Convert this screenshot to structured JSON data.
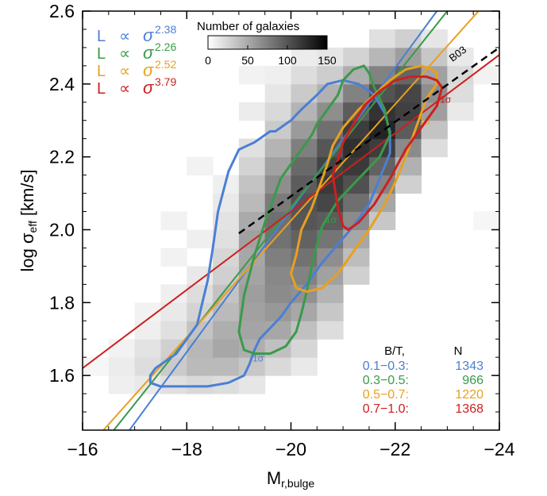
{
  "chart_data": {
    "type": "scatter",
    "xlabel": "M",
    "xlabel_sub": "r,bulge",
    "ylabel": "log σ",
    "ylabel_sub": "eff",
    "ylabel_unit": "[km/s]",
    "xlim": [
      -16,
      -24
    ],
    "ylim": [
      1.45,
      2.6
    ],
    "x_ticks": [
      -16,
      -18,
      -20,
      -22,
      -24
    ],
    "x_tick_labels": [
      "−16",
      "−18",
      "−20",
      "−22",
      "−24"
    ],
    "y_ticks": [
      1.6,
      1.8,
      2.0,
      2.2,
      2.4,
      2.6
    ],
    "y_tick_labels": [
      "1.6",
      "1.8",
      "2.0",
      "2.2",
      "2.4",
      "2.6"
    ],
    "colorbar": {
      "title": "Number of galaxies",
      "range": [
        0,
        150
      ],
      "ticks": [
        0,
        50,
        100,
        150
      ],
      "tick_labels": [
        "0",
        "50",
        "100",
        "150"
      ]
    },
    "density_grid": {
      "x0": -16.0,
      "dx": 0.5,
      "y0": 1.45,
      "dy": 0.05,
      "note_cells": "counts per cell, rows from low y to high y",
      "cells": [
        [
          -16.0,
          1.6,
          6
        ],
        [
          -16.5,
          1.55,
          10
        ],
        [
          -16.5,
          1.6,
          12
        ],
        [
          -16.5,
          1.65,
          8
        ],
        [
          -17.0,
          1.55,
          14
        ],
        [
          -17.0,
          1.6,
          22
        ],
        [
          -17.0,
          1.65,
          18
        ],
        [
          -17.0,
          1.7,
          10
        ],
        [
          -17.0,
          1.75,
          8
        ],
        [
          -17.5,
          1.55,
          20
        ],
        [
          -17.5,
          1.6,
          34
        ],
        [
          -17.5,
          1.65,
          30
        ],
        [
          -17.5,
          1.7,
          20
        ],
        [
          -17.5,
          1.75,
          14
        ],
        [
          -17.5,
          1.8,
          10
        ],
        [
          -17.5,
          1.9,
          8
        ],
        [
          -17.5,
          2.0,
          8
        ],
        [
          -18.0,
          1.55,
          24
        ],
        [
          -18.0,
          1.6,
          44
        ],
        [
          -18.0,
          1.65,
          46
        ],
        [
          -18.0,
          1.7,
          38
        ],
        [
          -18.0,
          1.75,
          28
        ],
        [
          -18.0,
          1.8,
          22
        ],
        [
          -18.0,
          1.85,
          14
        ],
        [
          -18.0,
          1.95,
          10
        ],
        [
          -18.0,
          2.15,
          8
        ],
        [
          -18.5,
          1.55,
          22
        ],
        [
          -18.5,
          1.6,
          44
        ],
        [
          -18.5,
          1.65,
          56
        ],
        [
          -18.5,
          1.7,
          52
        ],
        [
          -18.5,
          1.75,
          44
        ],
        [
          -18.5,
          1.8,
          38
        ],
        [
          -18.5,
          1.85,
          30
        ],
        [
          -18.5,
          1.9,
          26
        ],
        [
          -18.5,
          1.95,
          20
        ],
        [
          -18.5,
          2.0,
          18
        ],
        [
          -18.5,
          2.05,
          14
        ],
        [
          -18.5,
          2.1,
          10
        ],
        [
          -19.0,
          1.55,
          16
        ],
        [
          -19.0,
          1.6,
          36
        ],
        [
          -19.0,
          1.65,
          52
        ],
        [
          -19.0,
          1.7,
          58
        ],
        [
          -19.0,
          1.75,
          60
        ],
        [
          -19.0,
          1.8,
          62
        ],
        [
          -19.0,
          1.85,
          58
        ],
        [
          -19.0,
          1.9,
          56
        ],
        [
          -19.0,
          1.95,
          60
        ],
        [
          -19.0,
          2.0,
          54
        ],
        [
          -19.0,
          2.05,
          44
        ],
        [
          -19.0,
          2.1,
          38
        ],
        [
          -19.0,
          2.15,
          28
        ],
        [
          -19.0,
          2.2,
          20
        ],
        [
          -19.0,
          2.3,
          12
        ],
        [
          -19.0,
          2.4,
          8
        ],
        [
          -19.5,
          1.6,
          24
        ],
        [
          -19.5,
          1.65,
          40
        ],
        [
          -19.5,
          1.7,
          56
        ],
        [
          -19.5,
          1.75,
          66
        ],
        [
          -19.5,
          1.8,
          74
        ],
        [
          -19.5,
          1.85,
          76
        ],
        [
          -19.5,
          1.9,
          82
        ],
        [
          -19.5,
          1.95,
          90
        ],
        [
          -19.5,
          2.0,
          92
        ],
        [
          -19.5,
          2.05,
          84
        ],
        [
          -19.5,
          2.1,
          72
        ],
        [
          -19.5,
          2.15,
          60
        ],
        [
          -19.5,
          2.2,
          48
        ],
        [
          -19.5,
          2.25,
          34
        ],
        [
          -19.5,
          2.3,
          24
        ],
        [
          -19.5,
          2.35,
          16
        ],
        [
          -19.5,
          2.4,
          10
        ],
        [
          -20.0,
          1.6,
          14
        ],
        [
          -20.0,
          1.65,
          26
        ],
        [
          -20.0,
          1.7,
          40
        ],
        [
          -20.0,
          1.75,
          56
        ],
        [
          -20.0,
          1.8,
          70
        ],
        [
          -20.0,
          1.85,
          80
        ],
        [
          -20.0,
          1.9,
          90
        ],
        [
          -20.0,
          1.95,
          100
        ],
        [
          -20.0,
          2.0,
          108
        ],
        [
          -20.0,
          2.05,
          110
        ],
        [
          -20.0,
          2.1,
          104
        ],
        [
          -20.0,
          2.15,
          96
        ],
        [
          -20.0,
          2.2,
          82
        ],
        [
          -20.0,
          2.25,
          64
        ],
        [
          -20.0,
          2.3,
          48
        ],
        [
          -20.0,
          2.35,
          34
        ],
        [
          -20.0,
          2.4,
          22
        ],
        [
          -20.0,
          2.45,
          12
        ],
        [
          -20.5,
          1.7,
          22
        ],
        [
          -20.5,
          1.75,
          36
        ],
        [
          -20.5,
          1.8,
          48
        ],
        [
          -20.5,
          1.85,
          60
        ],
        [
          -20.5,
          1.9,
          72
        ],
        [
          -20.5,
          1.95,
          88
        ],
        [
          -20.5,
          2.0,
          104
        ],
        [
          -20.5,
          2.05,
          118
        ],
        [
          -20.5,
          2.1,
          126
        ],
        [
          -20.5,
          2.15,
          120
        ],
        [
          -20.5,
          2.2,
          108
        ],
        [
          -20.5,
          2.25,
          92
        ],
        [
          -20.5,
          2.3,
          72
        ],
        [
          -20.5,
          2.35,
          50
        ],
        [
          -20.5,
          2.4,
          32
        ],
        [
          -20.5,
          2.45,
          16
        ],
        [
          -21.0,
          1.85,
          30
        ],
        [
          -21.0,
          1.9,
          42
        ],
        [
          -21.0,
          1.95,
          56
        ],
        [
          -21.0,
          2.0,
          74
        ],
        [
          -21.0,
          2.05,
          92
        ],
        [
          -21.0,
          2.1,
          112
        ],
        [
          -21.0,
          2.15,
          126
        ],
        [
          -21.0,
          2.2,
          132
        ],
        [
          -21.0,
          2.25,
          124
        ],
        [
          -21.0,
          2.3,
          104
        ],
        [
          -21.0,
          2.35,
          80
        ],
        [
          -21.0,
          2.4,
          52
        ],
        [
          -21.0,
          2.45,
          28
        ],
        [
          -21.5,
          2.0,
          36
        ],
        [
          -21.5,
          2.05,
          56
        ],
        [
          -21.5,
          2.1,
          78
        ],
        [
          -21.5,
          2.15,
          100
        ],
        [
          -21.5,
          2.2,
          124
        ],
        [
          -21.5,
          2.25,
          140
        ],
        [
          -21.5,
          2.3,
          130
        ],
        [
          -21.5,
          2.35,
          110
        ],
        [
          -21.5,
          2.4,
          80
        ],
        [
          -21.5,
          2.45,
          46
        ],
        [
          -21.5,
          2.5,
          20
        ],
        [
          -22.0,
          2.1,
          30
        ],
        [
          -22.0,
          2.15,
          50
        ],
        [
          -22.0,
          2.2,
          74
        ],
        [
          -22.0,
          2.25,
          104
        ],
        [
          -22.0,
          2.3,
          122
        ],
        [
          -22.0,
          2.35,
          118
        ],
        [
          -22.0,
          2.4,
          98
        ],
        [
          -22.0,
          2.45,
          62
        ],
        [
          -22.0,
          2.5,
          30
        ],
        [
          -22.5,
          2.2,
          22
        ],
        [
          -22.5,
          2.25,
          38
        ],
        [
          -22.5,
          2.3,
          62
        ],
        [
          -22.5,
          2.35,
          72
        ],
        [
          -22.5,
          2.4,
          60
        ],
        [
          -22.5,
          2.45,
          36
        ],
        [
          -22.5,
          2.5,
          16
        ],
        [
          -23.0,
          2.3,
          14
        ],
        [
          -23.0,
          2.35,
          22
        ],
        [
          -23.0,
          2.4,
          24
        ],
        [
          -23.0,
          2.45,
          14
        ],
        [
          -23.5,
          2.4,
          8
        ],
        [
          -23.5,
          2.0,
          6
        ]
      ]
    },
    "fit_lines": [
      {
        "name": "L ∝ σ",
        "exponent": "2.38",
        "color": "#4a7fd4",
        "x": [
          -16.9,
          -22.8
        ],
        "y": [
          1.45,
          2.6
        ]
      },
      {
        "name": "L ∝ σ",
        "exponent": "2.26",
        "color": "#3a9a4a",
        "x": [
          -16.6,
          -23.0
        ],
        "y": [
          1.45,
          2.6
        ]
      },
      {
        "name": "L ∝ σ",
        "exponent": "2.52",
        "color": "#e8a020",
        "x": [
          -16.4,
          -23.6
        ],
        "y": [
          1.45,
          2.6
        ]
      },
      {
        "name": "L ∝ σ",
        "exponent": "3.79",
        "color": "#cc2020",
        "x": [
          -16.0,
          -24.0
        ],
        "y": [
          1.62,
          2.48
        ]
      }
    ],
    "reference_line": {
      "label": "B03",
      "color": "#000000",
      "x": [
        -19.0,
        -24.0
      ],
      "y": [
        1.99,
        2.5
      ]
    },
    "contours": [
      {
        "color": "#4a7fd4",
        "label": "1σ",
        "x": [
          -19.6,
          -19.3,
          -19.0,
          -18.8,
          -18.6,
          -18.5,
          -18.4,
          -18.3,
          -18.2,
          -18.0,
          -17.8,
          -17.6,
          -17.4,
          -17.3,
          -17.3,
          -17.5,
          -17.9,
          -18.4,
          -18.8,
          -19.1,
          -19.2,
          -19.3,
          -19.4,
          -19.6,
          -19.8,
          -20.0,
          -20.3,
          -20.6,
          -20.9,
          -21.2,
          -21.5,
          -21.7,
          -21.9,
          -21.9,
          -21.8,
          -21.6,
          -21.3,
          -21.0,
          -20.7,
          -20.5,
          -20.2,
          -20.0,
          -19.8,
          -19.7,
          -19.6
        ],
        "y": [
          2.27,
          2.24,
          2.22,
          2.16,
          2.05,
          1.95,
          1.86,
          1.8,
          1.74,
          1.7,
          1.66,
          1.64,
          1.62,
          1.6,
          1.58,
          1.57,
          1.57,
          1.57,
          1.58,
          1.6,
          1.63,
          1.67,
          1.7,
          1.73,
          1.76,
          1.8,
          1.85,
          1.91,
          1.96,
          2.01,
          2.07,
          2.14,
          2.21,
          2.27,
          2.32,
          2.37,
          2.4,
          2.41,
          2.4,
          2.37,
          2.33,
          2.3,
          2.28,
          2.27,
          2.27
        ]
      },
      {
        "color": "#3a9a4a",
        "label": "1σ",
        "x": [
          -19.7,
          -19.5,
          -19.3,
          -19.1,
          -19.0,
          -19.1,
          -19.3,
          -19.6,
          -19.9,
          -20.1,
          -20.2,
          -20.3,
          -20.4,
          -20.5,
          -20.6,
          -20.9,
          -21.3,
          -21.7,
          -21.9,
          -21.8,
          -21.6,
          -21.5,
          -21.4,
          -21.2,
          -21.0,
          -20.9,
          -20.7,
          -20.5,
          -20.4,
          -20.2,
          -20.0,
          -19.8,
          -19.7
        ],
        "y": [
          2.1,
          2.02,
          1.93,
          1.82,
          1.72,
          1.67,
          1.66,
          1.66,
          1.68,
          1.72,
          1.77,
          1.83,
          1.9,
          1.96,
          2.01,
          2.08,
          2.14,
          2.2,
          2.26,
          2.33,
          2.39,
          2.43,
          2.45,
          2.44,
          2.41,
          2.37,
          2.33,
          2.29,
          2.26,
          2.22,
          2.18,
          2.14,
          2.1
        ]
      },
      {
        "color": "#e8a020",
        "label": "1σ",
        "x": [
          -20.4,
          -20.2,
          -20.1,
          -20.0,
          -20.1,
          -20.3,
          -20.6,
          -20.9,
          -21.2,
          -21.5,
          -21.8,
          -22.0,
          -22.2,
          -22.4,
          -22.6,
          -22.8,
          -22.8,
          -22.7,
          -22.5,
          -22.2,
          -21.9,
          -21.6,
          -21.3,
          -21.0,
          -20.8,
          -20.7,
          -20.6,
          -20.5,
          -20.4
        ],
        "y": [
          2.06,
          2.0,
          1.93,
          1.88,
          1.84,
          1.83,
          1.84,
          1.88,
          1.94,
          2.0,
          2.07,
          2.13,
          2.2,
          2.28,
          2.36,
          2.4,
          2.43,
          2.44,
          2.45,
          2.44,
          2.41,
          2.37,
          2.33,
          2.28,
          2.23,
          2.18,
          2.14,
          2.1,
          2.06
        ]
      },
      {
        "color": "#cc2020",
        "label": "1σ",
        "x": [
          -20.8,
          -20.9,
          -21.0,
          -21.1,
          -21.3,
          -21.6,
          -21.9,
          -22.2,
          -22.5,
          -22.8,
          -22.9,
          -22.8,
          -22.6,
          -22.3,
          -22.0,
          -21.7,
          -21.4,
          -21.2,
          -21.0,
          -20.9,
          -20.8
        ],
        "y": [
          2.15,
          2.06,
          2.01,
          2.0,
          2.02,
          2.07,
          2.14,
          2.22,
          2.28,
          2.34,
          2.39,
          2.41,
          2.42,
          2.42,
          2.41,
          2.38,
          2.34,
          2.29,
          2.24,
          2.19,
          2.15
        ]
      }
    ],
    "legend_fits": [
      {
        "prefix": "L",
        "symbol": "∝",
        "base": "σ",
        "exponent": "2.38",
        "color": "#4a7fd4"
      },
      {
        "prefix": "L",
        "symbol": "∝",
        "base": "σ",
        "exponent": "2.26",
        "color": "#3a9a4a"
      },
      {
        "prefix": "L",
        "symbol": "∝",
        "base": "σ",
        "exponent": "2.52",
        "color": "#e8a020"
      },
      {
        "prefix": "L",
        "symbol": "∝",
        "base": "σ",
        "exponent": "3.79",
        "color": "#cc2020"
      }
    ],
    "legend_table": {
      "header_bt": "B/T,",
      "header_n": "N",
      "rows": [
        {
          "range": "0.1−0.3:",
          "n": "1343",
          "color": "#4a7fd4"
        },
        {
          "range": "0.3−0.5:",
          "n": "966",
          "color": "#3a9a4a"
        },
        {
          "range": "0.5−0.7:",
          "n": "1220",
          "color": "#e8a020"
        },
        {
          "range": "0.7−1.0:",
          "n": "1368",
          "color": "#cc2020"
        }
      ]
    }
  }
}
